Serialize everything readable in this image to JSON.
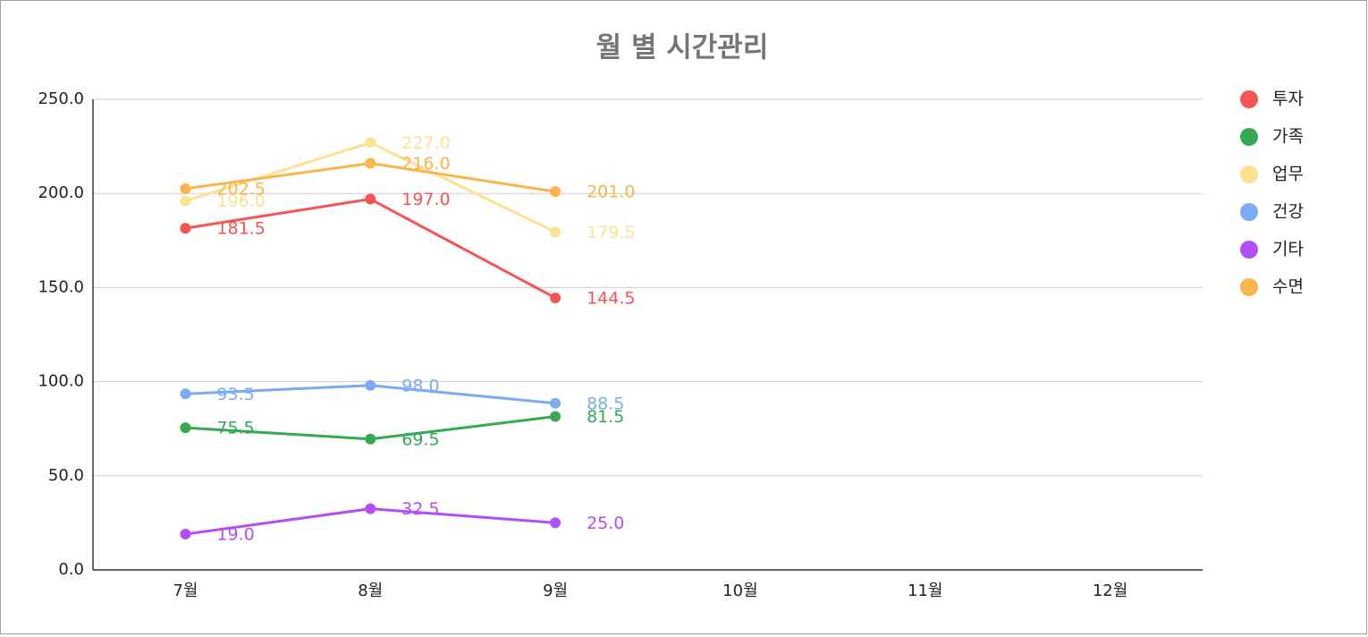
{
  "chart_data": {
    "type": "line",
    "title": "월 별 시간관리",
    "categories": [
      "7월",
      "8월",
      "9월",
      "10월",
      "11월",
      "12월"
    ],
    "series": [
      {
        "name": "투자",
        "color": "#f45454",
        "values": [
          181.5,
          197,
          144.5,
          null,
          null,
          null
        ],
        "value_labels": [
          "181.5",
          "197.0",
          "144.5",
          null,
          null,
          null
        ]
      },
      {
        "name": "가족",
        "color": "#34a853",
        "values": [
          75.5,
          69.5,
          81.5,
          null,
          null,
          null
        ],
        "value_labels": [
          "75.5",
          "69.5",
          "81.5",
          null,
          null,
          null
        ]
      },
      {
        "name": "업무",
        "color": "#fde293",
        "values": [
          196,
          227,
          179.5,
          null,
          null,
          null
        ],
        "value_labels": [
          "196.0",
          "227.0",
          "179.5",
          null,
          null,
          null
        ]
      },
      {
        "name": "건강",
        "color": "#7baaf7",
        "values": [
          93.5,
          98,
          88.5,
          null,
          null,
          null
        ],
        "value_labels": [
          "93.5",
          "98.0",
          "88.5",
          null,
          null,
          null
        ]
      },
      {
        "name": "기타",
        "color": "#b24ef7",
        "values": [
          19,
          32.5,
          25,
          null,
          null,
          null
        ],
        "value_labels": [
          "19.0",
          "32.5",
          "25.0",
          null,
          null,
          null
        ]
      },
      {
        "name": "수면",
        "color": "#f9b44a",
        "values": [
          202.5,
          216,
          201,
          null,
          null,
          null
        ],
        "value_labels": [
          "202.5",
          "216.0",
          "201.0",
          null,
          null,
          null
        ]
      }
    ],
    "ylim": [
      0,
      250
    ],
    "yticks": [
      {
        "value": 0,
        "label": "0.0"
      },
      {
        "value": 50,
        "label": "50.0"
      },
      {
        "value": 100,
        "label": "100.0"
      },
      {
        "value": 150,
        "label": "150.0"
      },
      {
        "value": 200,
        "label": "200.0"
      },
      {
        "value": 250,
        "label": "250.0"
      }
    ],
    "grid": true,
    "legend": "right"
  }
}
